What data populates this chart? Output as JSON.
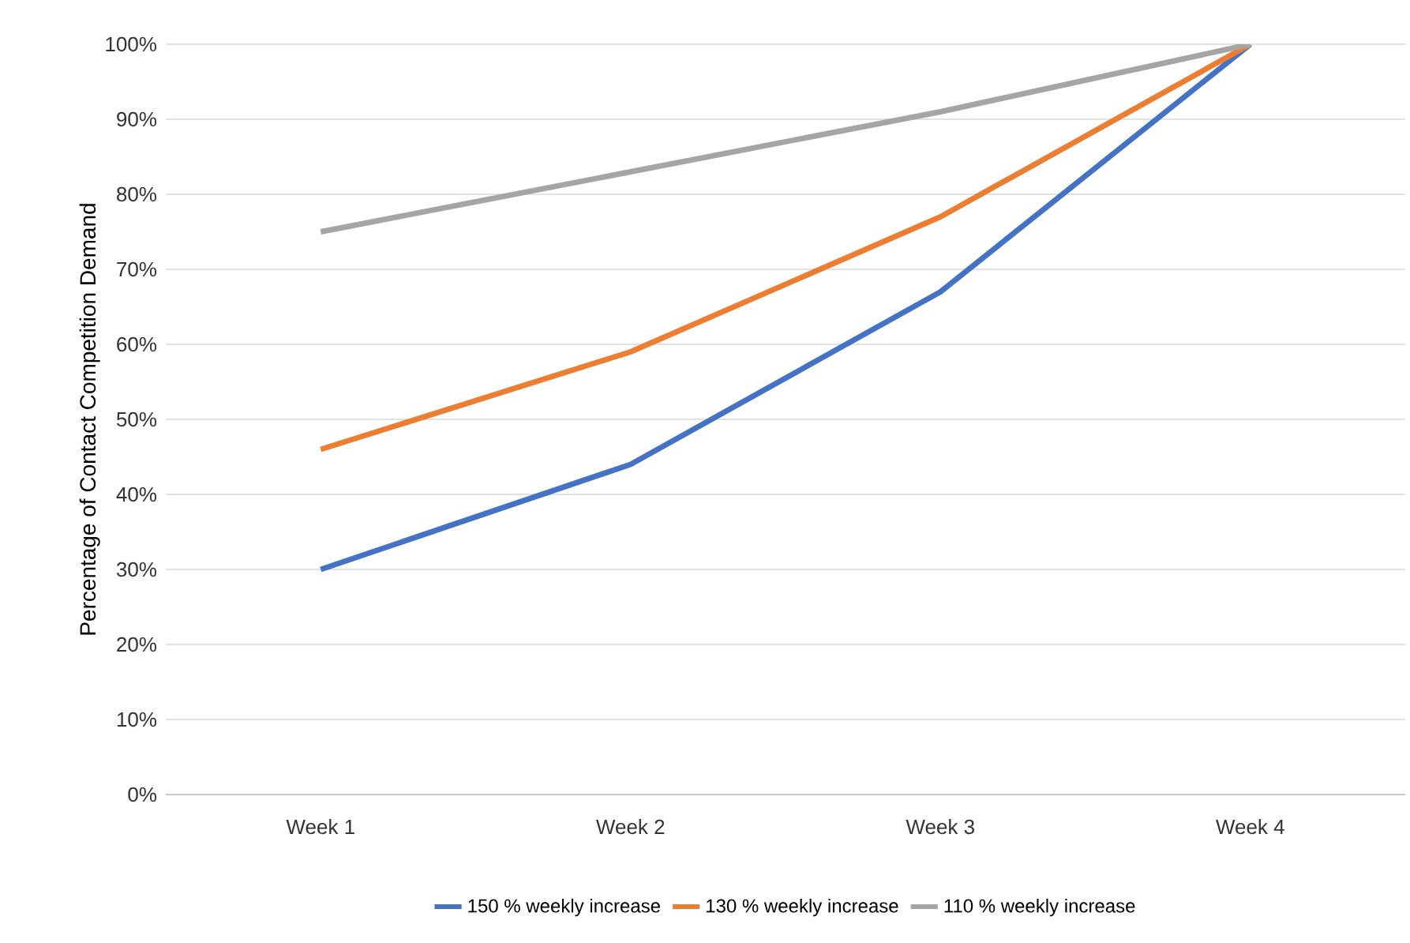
{
  "chart_data": {
    "type": "line",
    "ylabel": "Percentage of Contact Competition Demand",
    "categories": [
      "Week 1",
      "Week 2",
      "Week 3",
      "Week 4"
    ],
    "series": [
      {
        "name": "150 % weekly increase",
        "color": "#4472c4",
        "values": [
          30,
          44,
          67,
          100
        ]
      },
      {
        "name": "130 % weekly increase",
        "color": "#ed7d31",
        "values": [
          46,
          59,
          77,
          100
        ]
      },
      {
        "name": "110 % weekly increase",
        "color": "#a5a5a5",
        "values": [
          75,
          83,
          91,
          100
        ]
      }
    ],
    "ylim": [
      0,
      100
    ],
    "yticks": [
      {
        "value": 0,
        "label": "0%"
      },
      {
        "value": 10,
        "label": "10%"
      },
      {
        "value": 20,
        "label": "20%"
      },
      {
        "value": 30,
        "label": "30%"
      },
      {
        "value": 40,
        "label": "40%"
      },
      {
        "value": 50,
        "label": "50%"
      },
      {
        "value": 60,
        "label": "60%"
      },
      {
        "value": 70,
        "label": "70%"
      },
      {
        "value": 80,
        "label": "80%"
      },
      {
        "value": 90,
        "label": "90%"
      },
      {
        "value": 100,
        "label": "100%"
      }
    ],
    "grid": "y",
    "legend": "bottom",
    "marker": "none",
    "line_style": "solid"
  }
}
